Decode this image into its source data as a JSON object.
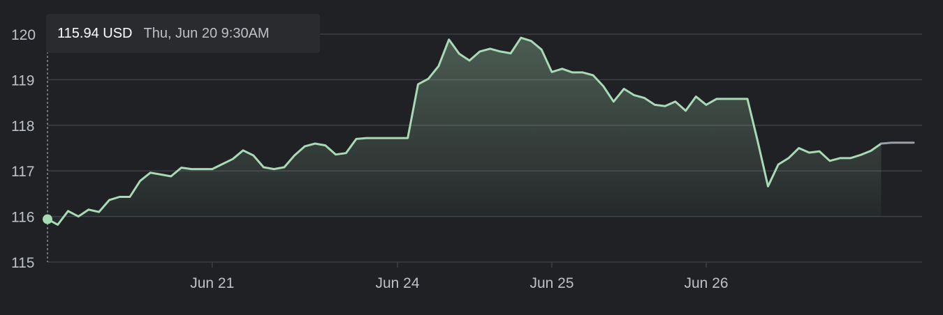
{
  "colors": {
    "background": "#202124",
    "line": "#a8dab5",
    "projection": "#9aa0a6",
    "grid": "#3c4043",
    "text": "#bdc1c6"
  },
  "tooltip": {
    "price": "115.94 USD",
    "date": "Thu, Jun 20 9:30AM"
  },
  "chart_data": {
    "type": "area",
    "title": "",
    "xlabel": "",
    "ylabel": "",
    "ylim": [
      115,
      120
    ],
    "grid": true,
    "y_ticks": [
      "115",
      "116",
      "117",
      "118",
      "119",
      "120"
    ],
    "x_ticks": [
      {
        "label": "Jun 21",
        "index": 16
      },
      {
        "label": "Jun 24",
        "index": 34
      },
      {
        "label": "Jun 25",
        "index": 49
      },
      {
        "label": "Jun 26",
        "index": 64
      }
    ],
    "hover_index": 0,
    "hover_value": 115.94,
    "series": [
      {
        "values": [
          115.94,
          115.82,
          116.12,
          116.0,
          116.15,
          116.1,
          116.36,
          116.43,
          116.43,
          116.78,
          116.96,
          116.92,
          116.88,
          117.07,
          117.04,
          117.04,
          117.04,
          117.15,
          117.26,
          117.45,
          117.34,
          117.08,
          117.04,
          117.08,
          117.34,
          117.54,
          117.6,
          117.56,
          117.36,
          117.39,
          117.7,
          117.72,
          117.72,
          117.72,
          117.72,
          117.72,
          118.9,
          119.02,
          119.3,
          119.88,
          119.57,
          119.42,
          119.62,
          119.68,
          119.62,
          119.58,
          119.92,
          119.85,
          119.66,
          119.17,
          119.24,
          119.16,
          119.16,
          119.1,
          118.86,
          118.52,
          118.8,
          118.66,
          118.6,
          118.45,
          118.42,
          118.52,
          118.32,
          118.63,
          118.45,
          118.58,
          118.58,
          118.58,
          118.58,
          117.65,
          116.66,
          117.14,
          117.28,
          117.5,
          117.4,
          117.43,
          117.22,
          117.28,
          117.28,
          117.35,
          117.44,
          117.6
        ],
        "projection": [
          117.6,
          117.62,
          117.62,
          117.62
        ]
      }
    ]
  }
}
